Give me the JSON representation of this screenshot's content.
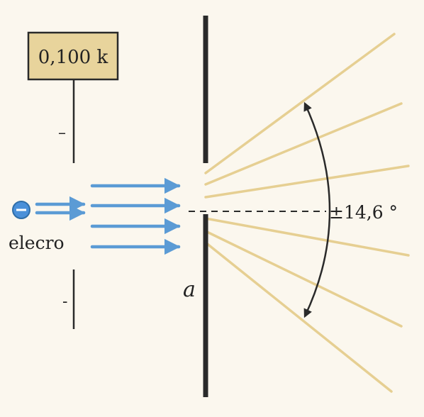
{
  "colors": {
    "background": "#fbf7ee",
    "box_fill": "#e8d49c",
    "ink": "#2a2a2a",
    "beam_arrow": "#5b9bd5",
    "diffraction_ray": "#e6cf92",
    "electron": "#4a90d9"
  },
  "voltage_box": {
    "label": "0,100 k"
  },
  "source": {
    "minus_top": "–",
    "minus_bottom": "-",
    "particle_label": "elecro",
    "particle_sign": "−"
  },
  "slit": {
    "width_label": "a"
  },
  "angle": {
    "label": "±14,6 °"
  },
  "icons": {
    "electron": "electron-icon",
    "arc_arrow": "curved-double-arrow-icon"
  }
}
